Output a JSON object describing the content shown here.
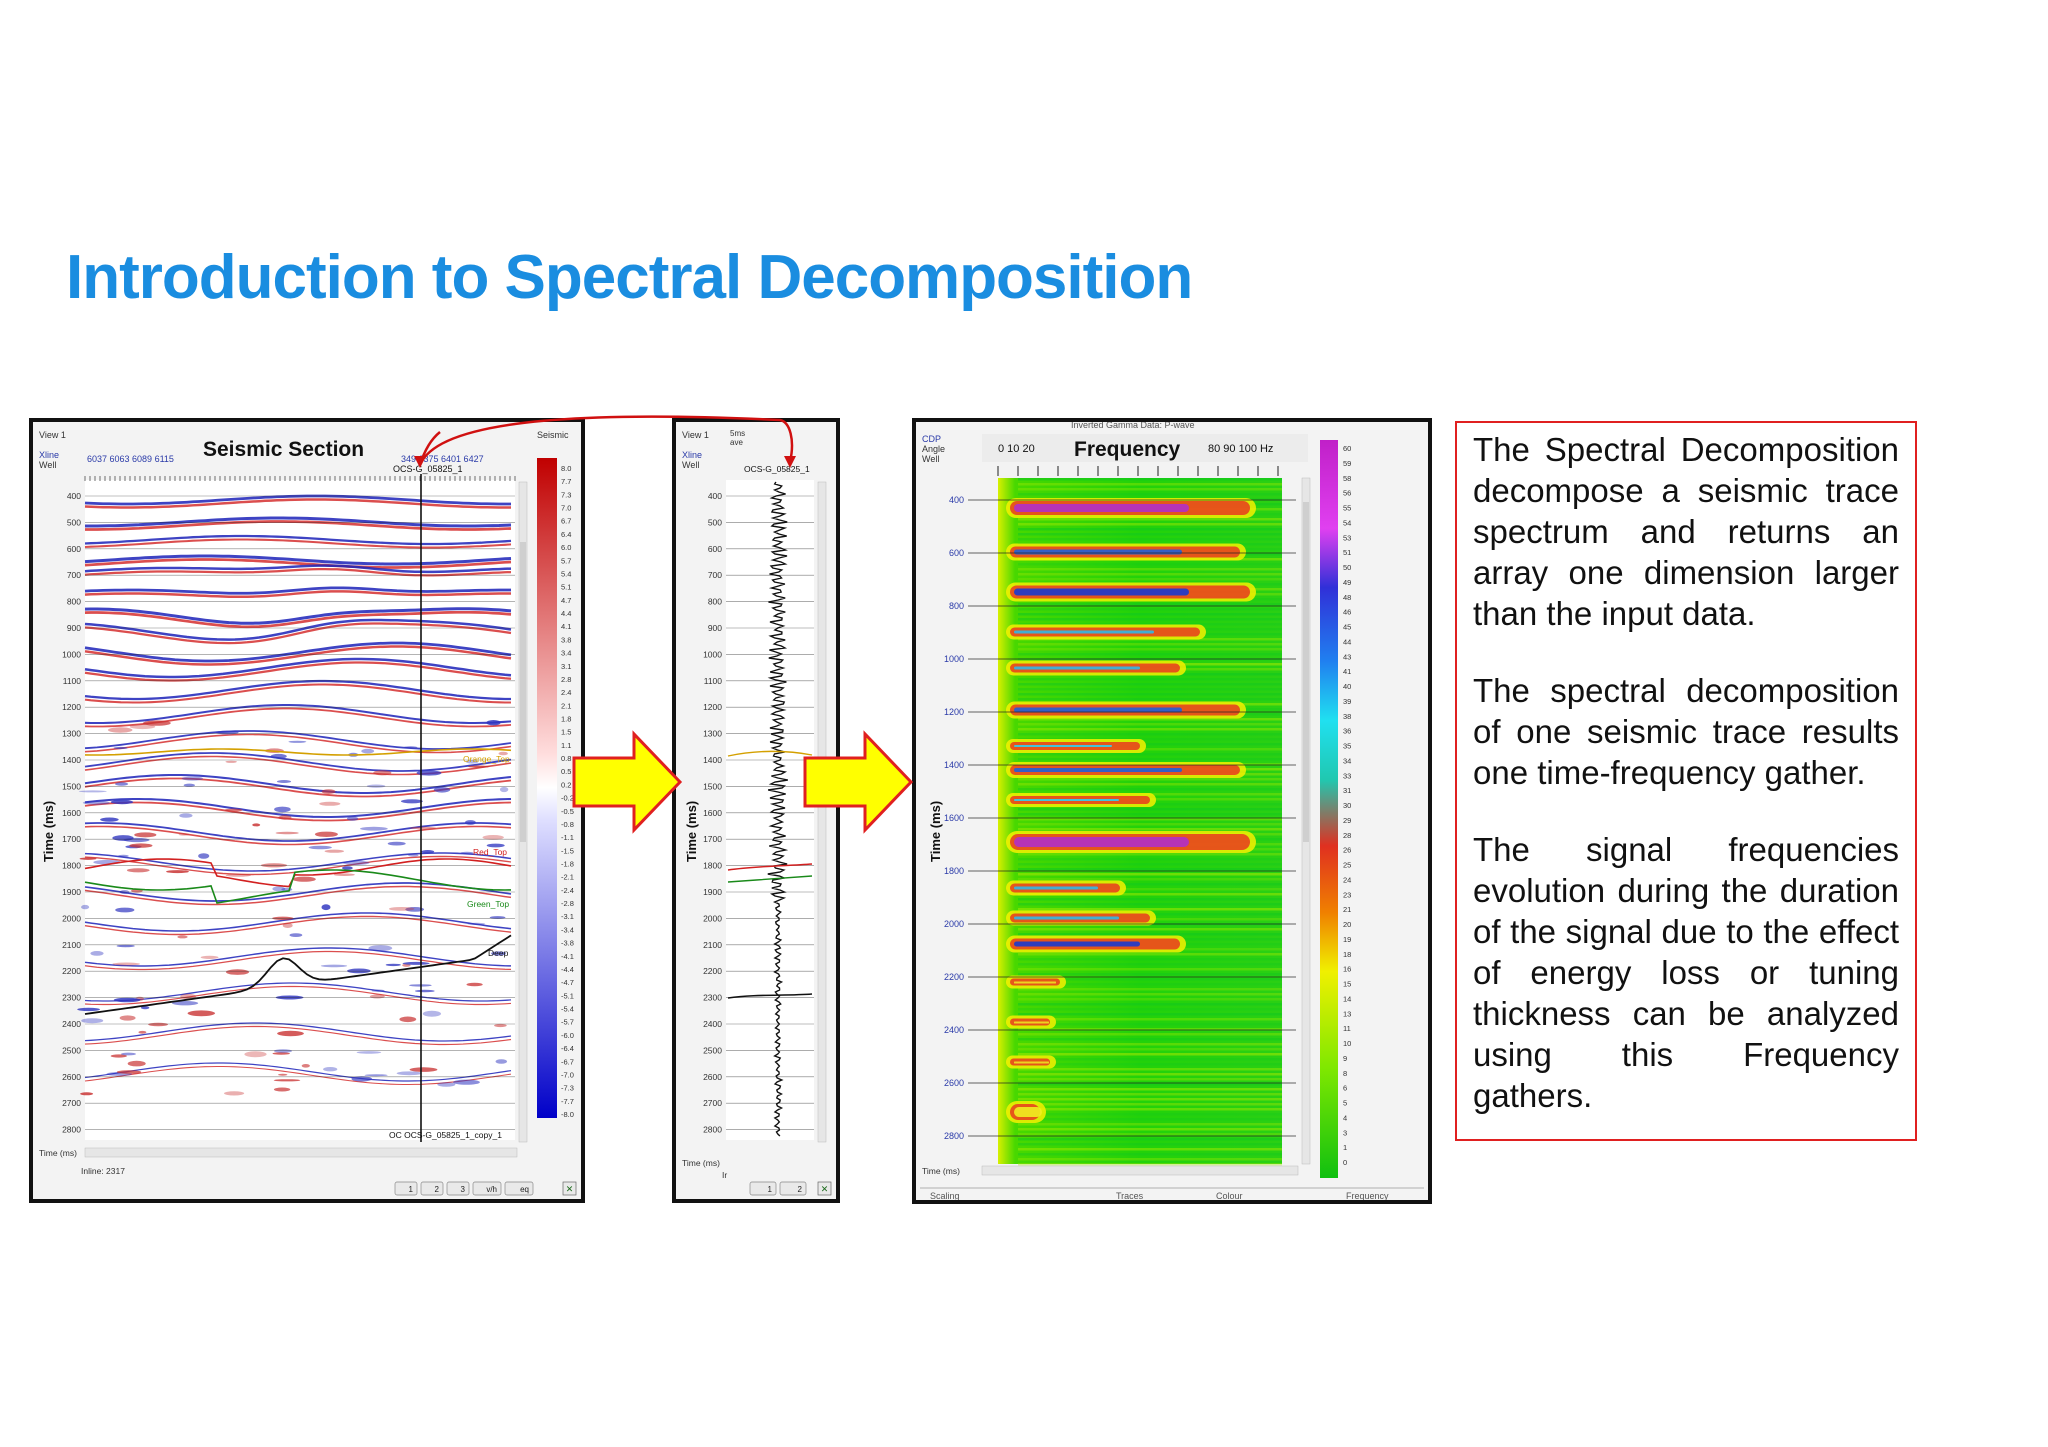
{
  "title": "Introduction to Spectral Decomposition",
  "seismic_panel": {
    "view_label": "View 1",
    "heading": "Seismic Section",
    "xline_label": "Xline",
    "well_label": "Well",
    "xline_values_left": "6037  6063  6089  6115",
    "xline_values_right": "349  6375  6401  6427",
    "well_name": "OCS-G_05825_1",
    "well_name_bottom": "OC OCS-G_05825_1_copy_1",
    "colorbar_title": "Seismic",
    "colorbar_ticks": [
      "8.0",
      "7.7",
      "7.3",
      "7.0",
      "6.7",
      "6.4",
      "6.0",
      "5.7",
      "5.4",
      "5.1",
      "4.7",
      "4.4",
      "4.1",
      "3.8",
      "3.4",
      "3.1",
      "2.8",
      "2.4",
      "2.1",
      "1.8",
      "1.5",
      "1.1",
      "0.8",
      "0.5",
      "0.2",
      "-0.2",
      "-0.5",
      "-0.8",
      "-1.1",
      "-1.5",
      "-1.8",
      "-2.1",
      "-2.4",
      "-2.8",
      "-3.1",
      "-3.4",
      "-3.8",
      "-4.1",
      "-4.4",
      "-4.7",
      "-5.1",
      "-5.4",
      "-5.7",
      "-6.0",
      "-6.4",
      "-6.7",
      "-7.0",
      "-7.3",
      "-7.7",
      "-8.0"
    ],
    "time_axis_title": "Time (ms)",
    "time_footer": "Time (ms)",
    "inline_label": "Inline: 2317",
    "horizons": [
      "Orange_Top",
      "Red_Top",
      "Green_Top",
      "Deep"
    ],
    "toolbar": [
      "1",
      "2",
      "3",
      "v/h",
      "eq"
    ]
  },
  "trace_panel": {
    "view_label": "View 1",
    "header_extra": "5ms\nave",
    "xline_label": "Xline",
    "well_label": "Well",
    "well_name": "OCS-G_05825_1",
    "time_axis_title": "Time (ms)",
    "time_footer": "Time (ms)",
    "footer_extra": "Ir",
    "toolbar": [
      "1",
      "2"
    ]
  },
  "freq_panel": {
    "top_cut_label": "Inverted Gamma Data: P-wave",
    "cdp_label": "CDP",
    "angle_label": "Angle",
    "well_label": "Well",
    "freq_ticks_left": "0 10    20",
    "heading": "Frequency",
    "freq_ticks_right": "80    90   100 Hz",
    "time_axis_title": "Time (ms)",
    "time_footer": "Time (ms)",
    "bottom_cut": [
      "Scaling",
      "Traces",
      "Colour",
      "Frequency"
    ],
    "colorbar_ticks": [
      "60",
      "59",
      "58",
      "56",
      "55",
      "54",
      "53",
      "51",
      "50",
      "49",
      "48",
      "46",
      "45",
      "44",
      "43",
      "41",
      "40",
      "39",
      "38",
      "36",
      "35",
      "34",
      "33",
      "31",
      "30",
      "29",
      "28",
      "26",
      "25",
      "24",
      "23",
      "21",
      "20",
      "19",
      "18",
      "16",
      "15",
      "14",
      "13",
      "11",
      "10",
      "9",
      "8",
      "6",
      "5",
      "4",
      "3",
      "1",
      "0"
    ]
  },
  "time_ticks": [
    "400",
    "500",
    "600",
    "700",
    "800",
    "900",
    "1000",
    "1100",
    "1200",
    "1300",
    "1400",
    "1500",
    "1600",
    "1700",
    "1800",
    "1900",
    "2000",
    "2100",
    "2200",
    "2300",
    "2400",
    "2500",
    "2600",
    "2700",
    "2800"
  ],
  "freq_time_ticks": [
    "400",
    "600",
    "800",
    "1000",
    "1200",
    "1400",
    "1600",
    "1800",
    "2000",
    "2200",
    "2400",
    "2600",
    "2800"
  ],
  "notes": [
    "The Spectral Decomposition decompose a seismic trace spectrum and returns an array one dimension larger than the input data.",
    "The spectral decomposition of one seismic trace results one time-frequency gather.",
    "The signal frequencies evolution during the duration of the signal due to the effect of energy loss or tuning thickness can be analyzed using this Frequency gathers."
  ],
  "colors": {
    "title": "#1a8de0",
    "note_border": "#e02020",
    "arrow_fill": "#ffff00",
    "arrow_stroke": "#e02020",
    "horizon_orange": "#d4a000",
    "horizon_red": "#d22020",
    "horizon_green": "#1a8a1a",
    "horizon_deep": "#111111"
  }
}
